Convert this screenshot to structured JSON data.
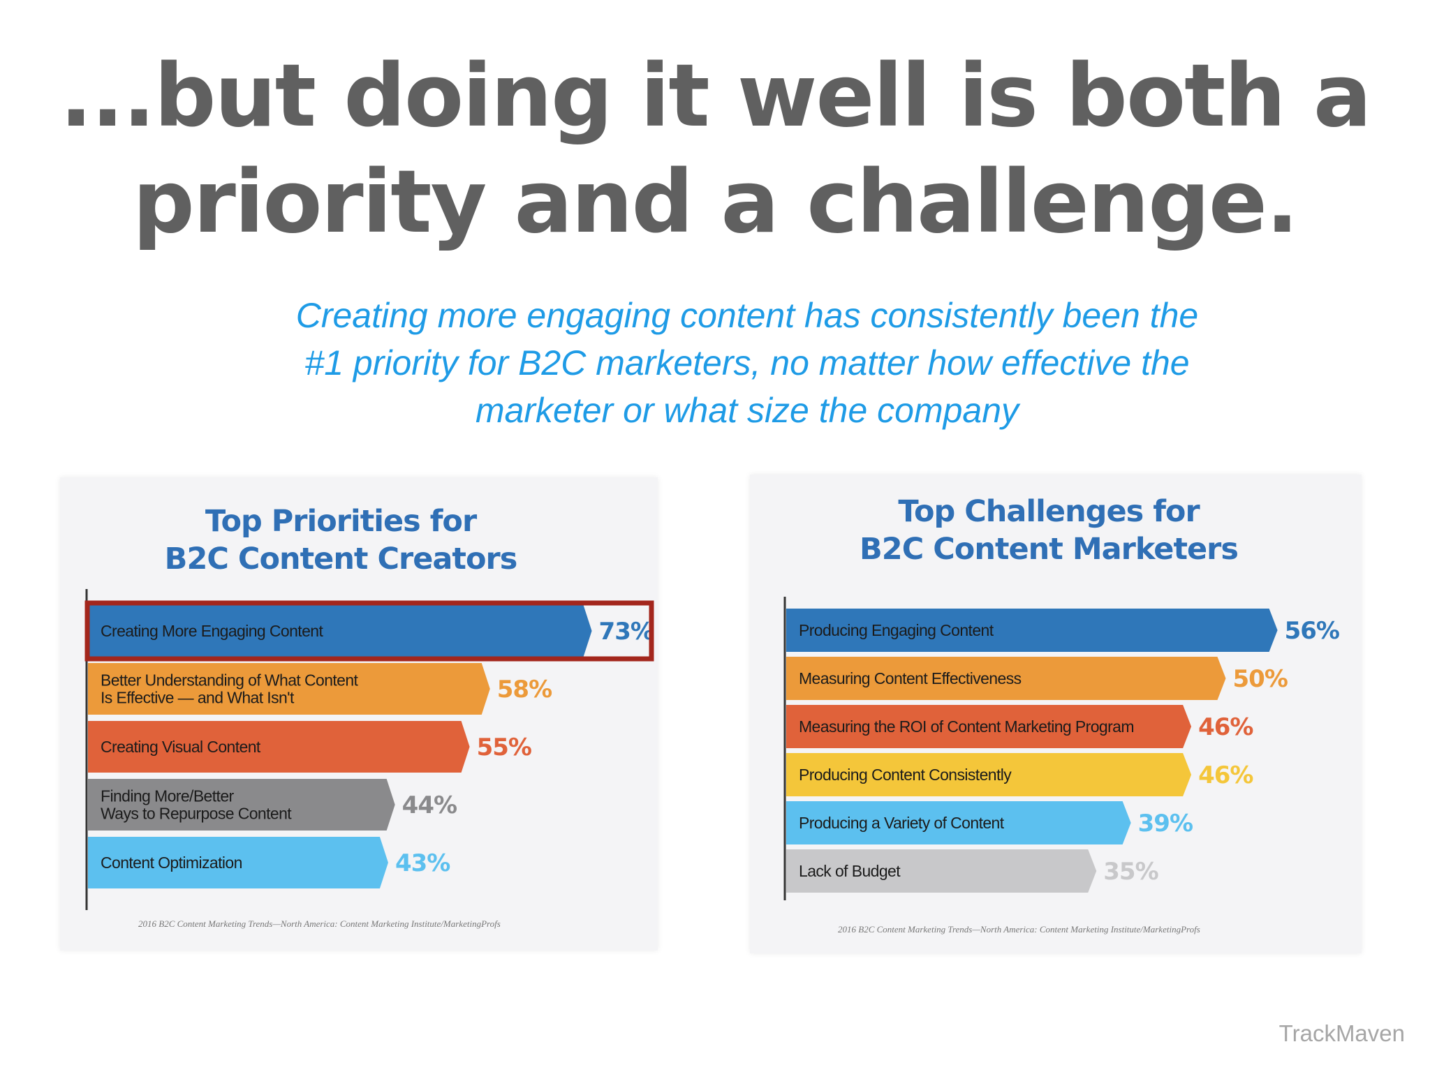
{
  "slide": {
    "title_lines": [
      "...but doing it well is both a",
      "priority and a challenge."
    ],
    "subtitle_lines": [
      "Creating more engaging content has consistently been the",
      "#1 priority for B2C marketers, no matter how effective the",
      "marketer or what size the company"
    ],
    "brand": "TrackMaven"
  },
  "chart_data": [
    {
      "type": "bar",
      "orientation": "horizontal",
      "title_lines": [
        "Top Priorities for",
        "B2C Content Creators"
      ],
      "categories": [
        "Creating More Engaging Content",
        "Better Understanding of What Content Is Effective — and What Isn't",
        "Creating Visual Content",
        "Finding More/Better Ways to Repurpose Content",
        "Content Optimization"
      ],
      "category_lines": [
        [
          "Creating More Engaging Content"
        ],
        [
          "Better Understanding of What Content",
          "Is Effective — and What Isn't"
        ],
        [
          "Creating Visual Content"
        ],
        [
          "Finding More/Better",
          "Ways to Repurpose Content"
        ],
        [
          "Content Optimization"
        ]
      ],
      "values": [
        73,
        58,
        55,
        44,
        43
      ],
      "value_labels": [
        "73%",
        "58%",
        "55%",
        "44%",
        "43%"
      ],
      "colors": [
        "#2f77b9",
        "#ec9a3a",
        "#e0623a",
        "#8a8a8c",
        "#5cc0ef"
      ],
      "highlighted_index": 0,
      "highlight_color": "#a3261c",
      "source": "2016 B2C Content Marketing Trends—North America: Content Marketing Institute/MarketingProfs"
    },
    {
      "type": "bar",
      "orientation": "horizontal",
      "title_lines": [
        "Top Challenges for",
        "B2C Content Marketers"
      ],
      "categories": [
        "Producing Engaging Content",
        "Measuring Content Effectiveness",
        "Measuring the ROI of Content Marketing Program",
        "Producing Content Consistently",
        "Producing a Variety of Content",
        "Lack of Budget"
      ],
      "category_lines": [
        [
          "Producing Engaging Content"
        ],
        [
          "Measuring Content Effectiveness"
        ],
        [
          "Measuring the ROI of Content Marketing Program"
        ],
        [
          "Producing Content Consistently"
        ],
        [
          "Producing a Variety of Content"
        ],
        [
          "Lack of Budget"
        ]
      ],
      "values": [
        56,
        50,
        46,
        46,
        39,
        35
      ],
      "value_labels": [
        "56%",
        "50%",
        "46%",
        "46%",
        "39%",
        "35%"
      ],
      "colors": [
        "#2f77b9",
        "#ec9a3a",
        "#e0623a",
        "#f4c63a",
        "#5cc0ef",
        "#c8c8ca"
      ],
      "source": "2016 B2C Content Marketing Trends—North America: Content Marketing Institute/MarketingProfs"
    }
  ]
}
